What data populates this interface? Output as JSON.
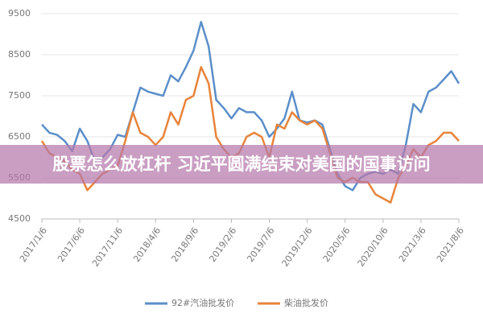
{
  "chart_data": {
    "type": "line",
    "categories": [
      "2017/1/6",
      null,
      null,
      null,
      null,
      "2017/6/6",
      null,
      null,
      null,
      null,
      "2017/11/6",
      null,
      null,
      null,
      null,
      "2018/4/6",
      null,
      null,
      null,
      null,
      "2018/9/6",
      null,
      null,
      null,
      null,
      "2019/2/6",
      null,
      null,
      null,
      null,
      "2019/7/6",
      null,
      null,
      null,
      null,
      "2019/12/6",
      null,
      null,
      null,
      null,
      "2020/5/6",
      null,
      null,
      null,
      null,
      "2020/10/6",
      null,
      null,
      null,
      null,
      "2021/3/6",
      null,
      null,
      null,
      null,
      "2021/8/6"
    ],
    "series": [
      {
        "name": "92#汽油批发价",
        "color": "#5b8fc9",
        "values": [
          6800,
          6600,
          6550,
          6400,
          6150,
          6700,
          6400,
          5900,
          6000,
          6200,
          6550,
          6500,
          7100,
          7700,
          7600,
          7550,
          7500,
          8000,
          7850,
          8200,
          8600,
          9300,
          8700,
          7400,
          7200,
          6950,
          7200,
          7100,
          7100,
          6900,
          6500,
          6700,
          6950,
          7600,
          6900,
          6850,
          6900,
          6800,
          6200,
          5600,
          5300,
          5200,
          5500,
          5600,
          5650,
          5600,
          5700,
          5600,
          6300,
          7300,
          7100,
          7600,
          7700,
          7900,
          8100,
          7800
        ]
      },
      {
        "name": "柴油批发价",
        "color": "#e8843a",
        "values": [
          6400,
          6100,
          6000,
          5900,
          5700,
          5600,
          5200,
          5400,
          5600,
          5700,
          5800,
          6400,
          7100,
          6600,
          6500,
          6300,
          6500,
          7100,
          6800,
          7400,
          7500,
          8200,
          7800,
          6500,
          6200,
          6000,
          6100,
          6500,
          6600,
          6500,
          6000,
          6800,
          6700,
          7100,
          6900,
          6800,
          6900,
          6700,
          6100,
          5500,
          5400,
          5500,
          5400,
          5400,
          5100,
          5000,
          4900,
          5500,
          5800,
          6200,
          6000,
          6300,
          6400,
          6600,
          6600,
          6400
        ]
      }
    ],
    "ylim": [
      4500,
      9500
    ],
    "yticks": [
      4500,
      5500,
      6500,
      7500,
      8500,
      9500
    ],
    "grid": true,
    "banner": "股票怎么放杠杆 习近平圆满结束对美国的国事访问"
  }
}
